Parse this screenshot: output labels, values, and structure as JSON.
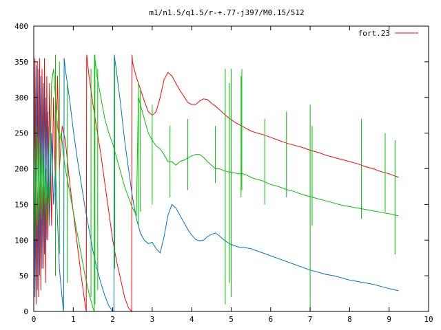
{
  "chart_data": {
    "type": "line",
    "title": "m1/n1.5/q1.5/r-+.77-j397/M0.15/512",
    "xlabel": "",
    "ylabel": "",
    "xlim": [
      0,
      10
    ],
    "ylim": [
      0,
      400
    ],
    "x_ticks": [
      "0",
      "1",
      "2",
      "3",
      "4",
      "5",
      "6",
      "7",
      "8",
      "9",
      "10"
    ],
    "y_ticks": [
      "0",
      "50",
      "100",
      "150",
      "200",
      "250",
      "300",
      "350",
      "400"
    ],
    "grid": false,
    "legend_position": "top-right",
    "legend": [
      {
        "label": "fort.23",
        "color": "#ff0000"
      }
    ],
    "series": [
      {
        "name": "fort.23",
        "color": "#ff0000",
        "x": [
          0.0,
          0.03,
          0.06,
          0.09,
          0.12,
          0.15,
          0.18,
          0.21,
          0.24,
          0.27,
          0.3,
          0.33,
          0.36,
          0.4,
          0.45,
          0.5,
          0.55,
          0.6,
          0.65,
          0.72,
          0.8,
          0.9,
          1.0,
          1.1,
          1.2,
          1.3,
          1.33,
          1.34,
          1.4,
          1.5,
          1.6,
          1.7,
          1.8,
          1.9,
          2.0,
          2.1,
          2.2,
          2.3,
          2.4,
          2.48,
          2.49,
          2.5,
          2.52,
          2.6,
          2.7,
          2.8,
          2.9,
          3.0,
          3.1,
          3.2,
          3.3,
          3.4,
          3.5,
          3.6,
          3.7,
          3.8,
          3.9,
          4.0,
          4.1,
          4.2,
          4.3,
          4.4,
          4.5,
          4.6,
          4.7,
          4.8,
          4.9,
          5.0,
          5.1,
          5.2,
          5.3,
          5.4,
          5.5,
          5.6,
          5.8,
          6.0,
          6.2,
          6.4,
          6.6,
          6.8,
          7.0,
          7.2,
          7.4,
          7.6,
          7.8,
          8.0,
          8.2,
          8.4,
          8.6,
          8.8,
          9.0,
          9.24
        ],
        "y": [
          0,
          355,
          10,
          350,
          20,
          355,
          30,
          340,
          60,
          355,
          40,
          330,
          100,
          320,
          120,
          300,
          170,
          330,
          200,
          260,
          240,
          185,
          140,
          95,
          50,
          10,
          0,
          360,
          330,
          290,
          255,
          220,
          180,
          140,
          100,
          70,
          45,
          20,
          5,
          0,
          360,
          350,
          345,
          328,
          312,
          295,
          280,
          275,
          280,
          300,
          325,
          335,
          330,
          320,
          310,
          302,
          293,
          290,
          290,
          295,
          298,
          297,
          292,
          288,
          283,
          278,
          273,
          269,
          265,
          262,
          259,
          256,
          253,
          251,
          248,
          244,
          240,
          236,
          233,
          230,
          226,
          223,
          219,
          216,
          213,
          210,
          207,
          203,
          200,
          196,
          193,
          188
        ]
      },
      {
        "name": "",
        "color": "#0070c0",
        "x": [
          0.0,
          0.03,
          0.06,
          0.09,
          0.12,
          0.15,
          0.18,
          0.21,
          0.24,
          0.27,
          0.3,
          0.33,
          0.36,
          0.4,
          0.45,
          0.5,
          0.55,
          0.6,
          0.65,
          0.7,
          0.75,
          0.76,
          0.77,
          0.8,
          0.9,
          1.0,
          1.1,
          1.2,
          1.3,
          1.4,
          1.5,
          1.6,
          1.7,
          1.8,
          1.9,
          2.0,
          2.03,
          2.04,
          2.05,
          2.1,
          2.2,
          2.3,
          2.4,
          2.5,
          2.6,
          2.7,
          2.8,
          2.9,
          3.0,
          3.1,
          3.2,
          3.3,
          3.4,
          3.5,
          3.6,
          3.7,
          3.8,
          3.9,
          4.0,
          4.1,
          4.2,
          4.3,
          4.4,
          4.5,
          4.6,
          4.7,
          4.8,
          4.9,
          5.0,
          5.1,
          5.2,
          5.3,
          5.4,
          5.5,
          5.6,
          5.8,
          6.0,
          6.2,
          6.4,
          6.6,
          6.8,
          7.0,
          7.2,
          7.4,
          7.6,
          7.8,
          8.0,
          8.2,
          8.4,
          8.6,
          8.8,
          9.0,
          9.24
        ],
        "y": [
          350,
          20,
          345,
          30,
          340,
          50,
          330,
          60,
          320,
          80,
          300,
          100,
          280,
          120,
          250,
          150,
          200,
          130,
          60,
          30,
          0,
          10,
          355,
          340,
          300,
          255,
          215,
          180,
          145,
          115,
          85,
          60,
          40,
          22,
          8,
          0,
          0,
          360,
          355,
          335,
          290,
          240,
          200,
          160,
          130,
          110,
          100,
          95,
          97,
          88,
          82,
          105,
          135,
          150,
          145,
          135,
          125,
          115,
          107,
          101,
          99,
          100,
          105,
          108,
          110,
          106,
          101,
          97,
          94,
          92,
          90,
          90,
          89,
          88,
          86,
          82,
          78,
          74,
          70,
          66,
          62,
          58,
          55,
          52,
          50,
          47,
          44,
          42,
          40,
          38,
          35,
          32,
          29
        ]
      },
      {
        "name": "",
        "color": "#00c000",
        "x": [
          0.0,
          0.03,
          0.06,
          0.09,
          0.12,
          0.15,
          0.18,
          0.21,
          0.24,
          0.27,
          0.3,
          0.33,
          0.36,
          0.4,
          0.45,
          0.5,
          0.55,
          0.6,
          0.65,
          0.7,
          0.75,
          0.8,
          0.9,
          1.0,
          1.1,
          1.2,
          1.3,
          1.4,
          1.5,
          1.53,
          1.54,
          1.6,
          1.7,
          1.8,
          1.9,
          2.0,
          2.1,
          2.2,
          2.3,
          2.4,
          2.5,
          2.6,
          2.65,
          2.7,
          2.8,
          2.9,
          3.0,
          3.1,
          3.2,
          3.3,
          3.4,
          3.5,
          3.6,
          3.7,
          3.8,
          3.9,
          4.0,
          4.1,
          4.2,
          4.3,
          4.4,
          4.5,
          4.6,
          4.7,
          4.8,
          4.9,
          5.0,
          5.1,
          5.2,
          5.3,
          5.4,
          5.5,
          5.6,
          5.8,
          6.0,
          6.2,
          6.4,
          6.6,
          6.8,
          7.0,
          7.2,
          7.4,
          7.6,
          7.8,
          8.0,
          8.2,
          8.4,
          8.6,
          8.8,
          9.0,
          9.24
        ],
        "y": [
          250,
          100,
          260,
          120,
          240,
          140,
          230,
          130,
          220,
          150,
          200,
          120,
          180,
          150,
          320,
          340,
          300,
          260,
          240,
          250,
          220,
          200,
          170,
          140,
          110,
          80,
          50,
          25,
          5,
          0,
          360,
          330,
          300,
          270,
          250,
          235,
          215,
          195,
          175,
          160,
          145,
          135,
          300,
          290,
          270,
          250,
          240,
          232,
          228,
          220,
          210,
          210,
          205,
          210,
          212,
          215,
          218,
          220,
          220,
          216,
          210,
          205,
          200,
          200,
          198,
          196,
          195,
          194,
          193,
          193,
          191,
          188,
          186,
          183,
          178,
          175,
          171,
          168,
          164,
          161,
          158,
          155,
          152,
          149,
          147,
          145,
          143,
          141,
          139,
          137,
          134
        ]
      }
    ],
    "spikes": {
      "x": [
        0.55,
        0.65,
        0.85,
        1.45,
        1.55,
        1.62,
        2.05,
        2.65,
        2.7,
        3.0,
        3.45,
        3.9,
        4.6,
        4.85,
        4.95,
        5.0,
        5.25,
        5.27,
        5.85,
        6.4,
        7.0,
        7.05,
        8.3,
        8.9,
        9.15
      ],
      "top": [
        360,
        350,
        320,
        340,
        360,
        340,
        350,
        320,
        310,
        290,
        260,
        270,
        260,
        340,
        320,
        340,
        330,
        340,
        270,
        280,
        290,
        260,
        270,
        250,
        240
      ],
      "bottom": [
        50,
        80,
        40,
        20,
        10,
        30,
        60,
        120,
        140,
        150,
        160,
        170,
        180,
        10,
        40,
        20,
        160,
        170,
        150,
        160,
        0,
        120,
        130,
        140,
        80
      ]
    }
  }
}
